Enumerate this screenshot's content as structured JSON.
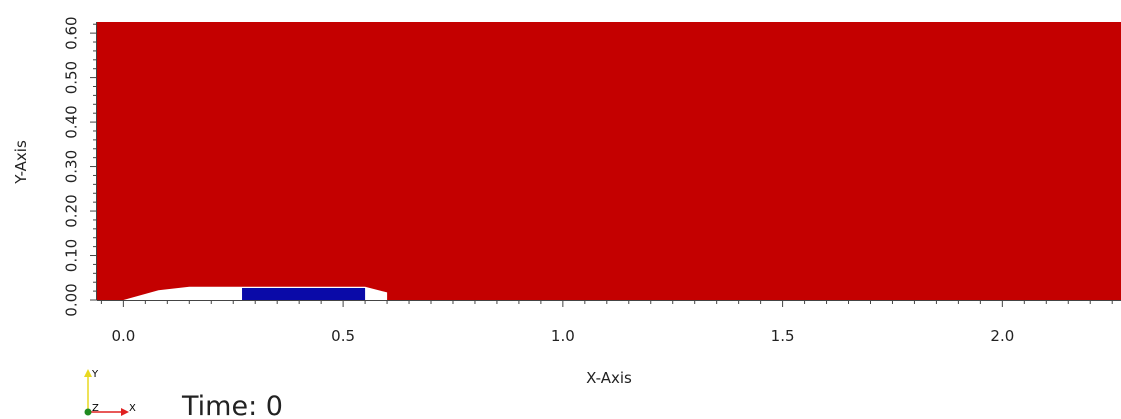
{
  "chart_data": {
    "type": "heatmap",
    "xlabel": "X-Axis",
    "ylabel": "Y-Axis",
    "xlim": [
      -0.06,
      2.27
    ],
    "ylim": [
      0.0,
      0.625
    ],
    "x_ticks": [
      {
        "value": 0.0,
        "label": "0.0"
      },
      {
        "value": 0.5,
        "label": "0.5"
      },
      {
        "value": 1.0,
        "label": "1.0"
      },
      {
        "value": 1.5,
        "label": "1.5"
      },
      {
        "value": 2.0,
        "label": "2.0"
      }
    ],
    "y_ticks": [
      {
        "value": 0.0,
        "label": "0.00"
      },
      {
        "value": 0.1,
        "label": "0.10"
      },
      {
        "value": 0.2,
        "label": "0.20"
      },
      {
        "value": 0.3,
        "label": "0.30"
      },
      {
        "value": 0.4,
        "label": "0.40"
      },
      {
        "value": 0.5,
        "label": "0.50"
      },
      {
        "value": 0.6,
        "label": "0.60"
      }
    ],
    "domain_color": "#c40000",
    "solid_body": {
      "color": "#ffffff",
      "outline": [
        [
          0.0,
          0.0
        ],
        [
          0.08,
          0.022
        ],
        [
          0.15,
          0.03
        ],
        [
          0.55,
          0.03
        ],
        [
          0.6,
          0.017
        ],
        [
          0.6,
          0.0
        ]
      ]
    },
    "inner_region": {
      "color": "#0a0aa8",
      "x": [
        0.27,
        0.55
      ],
      "y": [
        0.0,
        0.027
      ]
    },
    "time_label": "Time: 0",
    "triad": {
      "x_label": "X",
      "y_label": "Y",
      "z_label": "Z",
      "x_color": "#e02020",
      "y_color": "#e8d820",
      "z_color": "#208a20"
    }
  }
}
